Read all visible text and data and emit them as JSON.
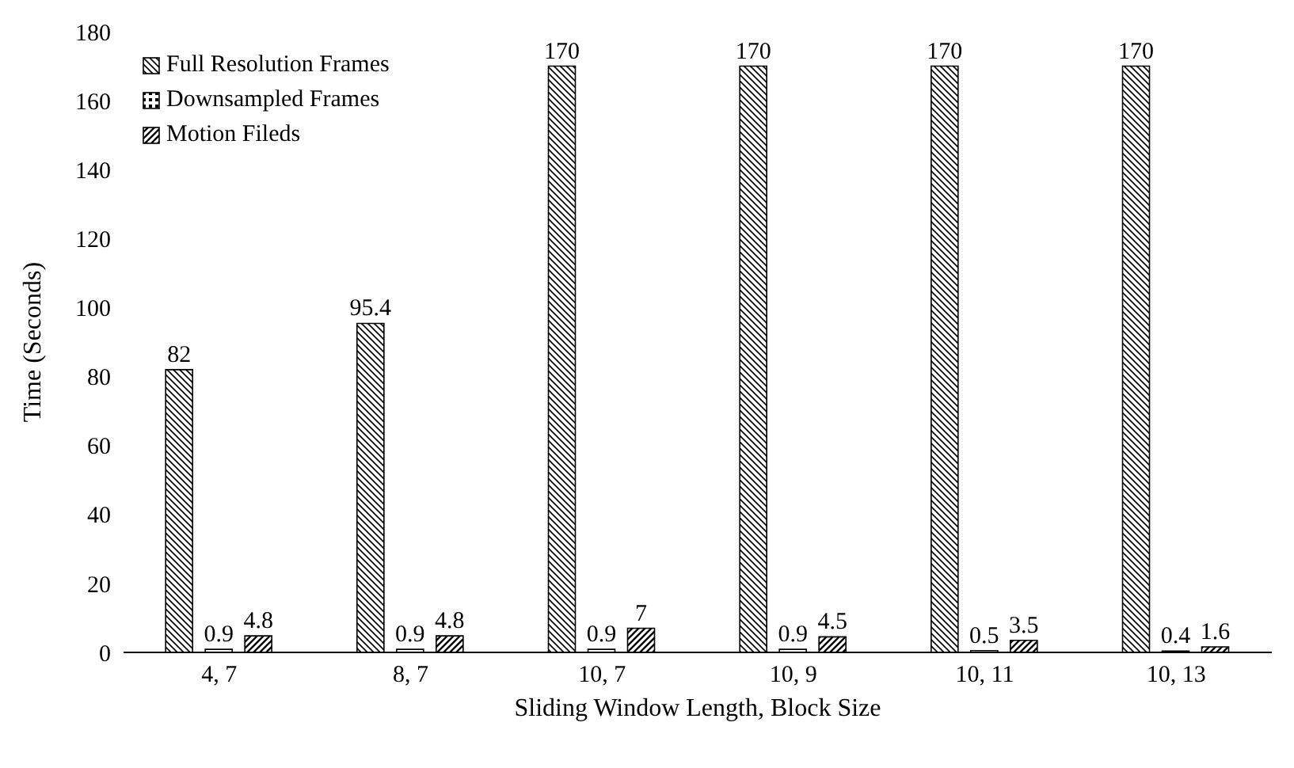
{
  "chart_data": {
    "type": "bar",
    "xlabel": "Sliding Window Length, Block Size",
    "ylabel": "Time (Seconds)",
    "categories": [
      "4, 7",
      "8, 7",
      "10, 7",
      "10, 9",
      "10, 11",
      "10, 13"
    ],
    "series": [
      {
        "name": "Full Resolution Frames",
        "color": "#000000",
        "values": [
          82,
          95.4,
          170,
          170,
          170,
          170
        ]
      },
      {
        "name": "Downsampled Frames",
        "color": "#000000",
        "values": [
          0.9,
          0.9,
          0.9,
          0.9,
          0.5,
          0.4
        ]
      },
      {
        "name": "Motion Fileds",
        "color": "#000000",
        "values": [
          4.8,
          4.8,
          7,
          4.5,
          3.5,
          1.6
        ]
      }
    ],
    "ylim": [
      0,
      180
    ],
    "yticks": [
      0,
      20,
      40,
      60,
      80,
      100,
      120,
      140,
      160,
      180
    ],
    "data_labels": true,
    "legend": "top left",
    "grid": false
  }
}
